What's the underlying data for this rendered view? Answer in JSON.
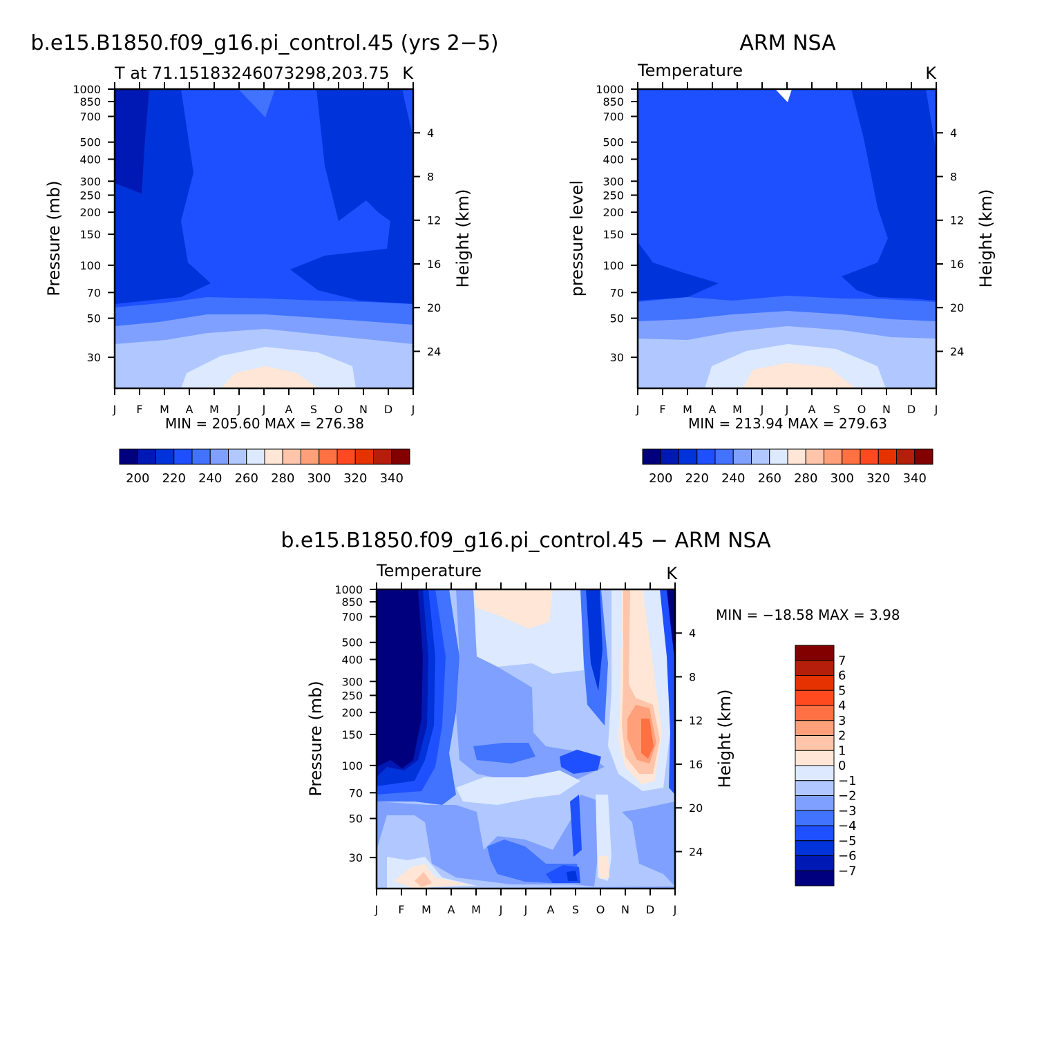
{
  "months": [
    "J",
    "F",
    "M",
    "A",
    "M",
    "J",
    "J",
    "A",
    "S",
    "O",
    "N",
    "D",
    "J"
  ],
  "chart_data": [
    {
      "type": "contour",
      "title": "b.e15.B1850.f09_g16.pi_control.45 (yrs 2−5)",
      "left_string": "T at 71.15183246073298,203.75",
      "right_string": "K",
      "ylabel": "Pressure  (mb)",
      "ylabel_right": "Height  (km)",
      "x": [
        "J",
        "F",
        "M",
        "A",
        "M",
        "J",
        "J",
        "A",
        "S",
        "O",
        "N",
        "D",
        "J"
      ],
      "pressure_ticks": [
        30,
        50,
        70,
        100,
        150,
        200,
        250,
        300,
        400,
        500,
        700,
        850,
        1000
      ],
      "height_ticks": [
        4,
        8,
        12,
        16,
        20,
        24
      ],
      "min_max_label": "MIN = 205.60  MAX = 276.38",
      "min": 205.6,
      "max": 276.38,
      "units": "K",
      "colorbar": {
        "orientation": "horizontal",
        "labels": [
          200,
          220,
          240,
          260,
          280,
          300,
          320,
          340
        ],
        "colors": [
          "#00007f",
          "#0019b4",
          "#0033d9",
          "#1e50ff",
          "#4173ff",
          "#7fa0ff",
          "#b0c8ff",
          "#dce9ff",
          "#ffe6d6",
          "#ffc5aa",
          "#ffa07a",
          "#ff7043",
          "#ff4a1f",
          "#e63200",
          "#b41e0a",
          "#820000"
        ]
      },
      "contour_levels_K": [
        210,
        220,
        230,
        240,
        250,
        260,
        270,
        280
      ]
    },
    {
      "type": "contour",
      "title": "ARM  NSA",
      "left_string": "Temperature",
      "right_string": "K",
      "ylabel": "pressure  level",
      "ylabel_right": "Height  (km)",
      "x": [
        "J",
        "F",
        "M",
        "A",
        "M",
        "J",
        "J",
        "A",
        "S",
        "O",
        "N",
        "D",
        "J"
      ],
      "pressure_ticks": [
        30,
        50,
        70,
        100,
        150,
        200,
        250,
        300,
        400,
        500,
        700,
        850,
        1000
      ],
      "height_ticks": [
        4,
        8,
        12,
        16,
        20,
        24
      ],
      "min_max_label": "MIN = 213.94  MAX = 279.63",
      "min": 213.94,
      "max": 279.63,
      "units": "K",
      "colorbar": {
        "orientation": "horizontal",
        "labels": [
          200,
          220,
          240,
          260,
          280,
          300,
          320,
          340
        ]
      }
    },
    {
      "type": "contour",
      "title": "b.e15.B1850.f09_g16.pi_control.45  −  ARM  NSA",
      "left_string": "Temperature",
      "right_string": "K",
      "ylabel": "Pressure  (mb)",
      "ylabel_right": "Height  (km)",
      "x": [
        "J",
        "F",
        "M",
        "A",
        "M",
        "J",
        "J",
        "A",
        "S",
        "O",
        "N",
        "D",
        "J"
      ],
      "pressure_ticks": [
        30,
        50,
        70,
        100,
        150,
        200,
        250,
        300,
        400,
        500,
        700,
        850,
        1000
      ],
      "height_ticks": [
        4,
        8,
        12,
        16,
        20,
        24
      ],
      "min_max_label": "MIN = −18.58  MAX =    3.98",
      "min": -18.58,
      "max": 3.98,
      "units": "K",
      "colorbar": {
        "orientation": "vertical",
        "labels": [
          "7",
          "6",
          "5",
          "4",
          "3",
          "2",
          "1",
          "0",
          "−1",
          "−2",
          "−3",
          "−4",
          "−5",
          "−6",
          "−7"
        ],
        "colors": [
          "#820000",
          "#b41e0a",
          "#e63200",
          "#ff4a1f",
          "#ff7043",
          "#ffa07a",
          "#ffc5aa",
          "#ffe6d6",
          "#dce9ff",
          "#b0c8ff",
          "#7fa0ff",
          "#4173ff",
          "#1e50ff",
          "#0033d9",
          "#0019b4",
          "#00007f"
        ]
      }
    }
  ]
}
